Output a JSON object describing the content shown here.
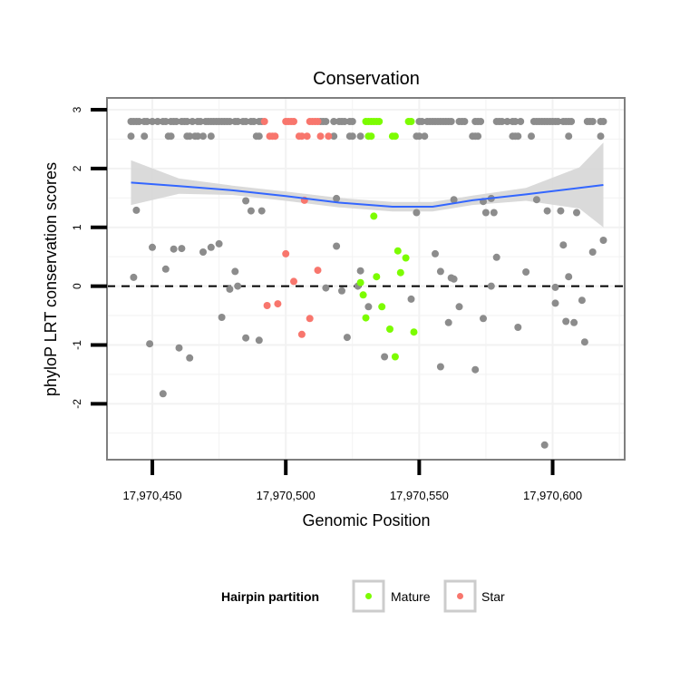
{
  "chart_data": {
    "type": "scatter",
    "title": "Conservation",
    "xlabel": "Genomic Position",
    "ylabel": "phyloP LRT conservation scores",
    "xlim": [
      17970433,
      17970627
    ],
    "ylim": [
      -2.95,
      3.2
    ],
    "x_ticks": [
      17970450,
      17970500,
      17970550,
      17970600
    ],
    "x_tick_labels": [
      "17,970,450",
      "17,970,500",
      "17,970,550",
      "17,970,600"
    ],
    "y_ticks": [
      -2,
      -1,
      0,
      1,
      2,
      3
    ],
    "y_tick_labels": [
      "-2",
      "-1",
      "0",
      "1",
      "2",
      "3"
    ],
    "grid": true,
    "reference_line": {
      "y": 0,
      "style": "dashed"
    },
    "legend": {
      "title": "Hairpin partition",
      "placement": "bottom",
      "entries": [
        {
          "label": "Mature",
          "color": "#7CFC00"
        },
        {
          "label": "Star",
          "color": "#F8766D"
        }
      ]
    },
    "colors": {
      "other": "#8c8c8c",
      "mature": "#7CFC00",
      "star": "#F8766D",
      "smooth": "#3366FF",
      "band": "#d6d6d6"
    },
    "smooth": {
      "x": [
        17970442,
        17970460,
        17970480,
        17970500,
        17970520,
        17970540,
        17970555,
        17970570,
        17970590,
        17970610,
        17970619
      ],
      "y": [
        1.76,
        1.7,
        1.63,
        1.53,
        1.42,
        1.35,
        1.35,
        1.46,
        1.56,
        1.67,
        1.72
      ],
      "band_low": [
        1.38,
        1.57,
        1.55,
        1.45,
        1.34,
        1.27,
        1.27,
        1.38,
        1.45,
        1.32,
        1.0
      ],
      "band_high": [
        2.14,
        1.83,
        1.71,
        1.61,
        1.5,
        1.43,
        1.43,
        1.54,
        1.67,
        2.02,
        2.44
      ]
    },
    "series": [
      {
        "name": "Other",
        "x": [
          17970442,
          17970443,
          17970444,
          17970445,
          17970447,
          17970448,
          17970450,
          17970452,
          17970454,
          17970455,
          17970457,
          17970458,
          17970459,
          17970461,
          17970462,
          17970463,
          17970465,
          17970467,
          17970468,
          17970470,
          17970471,
          17970472,
          17970473,
          17970474,
          17970475,
          17970476,
          17970477,
          17970478,
          17970479,
          17970481,
          17970482,
          17970484,
          17970485,
          17970487,
          17970488,
          17970490,
          17970491,
          17970513,
          17970514,
          17970515,
          17970518,
          17970520,
          17970521,
          17970522,
          17970524,
          17970525,
          17970550,
          17970551,
          17970553,
          17970554,
          17970555,
          17970556,
          17970557,
          17970558,
          17970559,
          17970560,
          17970561,
          17970562,
          17970565,
          17970566,
          17970567,
          17970571,
          17970572,
          17970573,
          17970579,
          17970580,
          17970581,
          17970583,
          17970585,
          17970586,
          17970588,
          17970593,
          17970594,
          17970595,
          17970596,
          17970597,
          17970598,
          17970599,
          17970600,
          17970601,
          17970602,
          17970604,
          17970605,
          17970606,
          17970607,
          17970613,
          17970614,
          17970615,
          17970618,
          17970619,
          17970442,
          17970447,
          17970456,
          17970457,
          17970463,
          17970464,
          17970466,
          17970467,
          17970469,
          17970472,
          17970489,
          17970490,
          17970518,
          17970524,
          17970525,
          17970528,
          17970549,
          17970550,
          17970552,
          17970570,
          17970571,
          17970572,
          17970585,
          17970586,
          17970587,
          17970592,
          17970606,
          17970618,
          17970444,
          17970485,
          17970487,
          17970491,
          17970519,
          17970549,
          17970563,
          17970574,
          17970575,
          17970578,
          17970577,
          17970594,
          17970598,
          17970603,
          17970609,
          17970450,
          17970458,
          17970461,
          17970469,
          17970472,
          17970475,
          17970519,
          17970556,
          17970443,
          17970455,
          17970481,
          17970482,
          17970528,
          17970558,
          17970562,
          17970563,
          17970577,
          17970579,
          17970590,
          17970606,
          17970615,
          17970619,
          17970479,
          17970515,
          17970521,
          17970527,
          17970531,
          17970547,
          17970574,
          17970611,
          17970601,
          17970565,
          17970601,
          17970605,
          17970561,
          17970449,
          17970476,
          17970485,
          17970490,
          17970523,
          17970587,
          17970608,
          17970612,
          17970460,
          17970464,
          17970537,
          17970454,
          17970558,
          17970571,
          17970597,
          17970604
        ],
        "y": [
          2.8,
          2.8,
          2.8,
          2.8,
          2.8,
          2.8,
          2.8,
          2.8,
          2.8,
          2.8,
          2.8,
          2.8,
          2.8,
          2.8,
          2.8,
          2.8,
          2.8,
          2.8,
          2.8,
          2.8,
          2.8,
          2.8,
          2.8,
          2.8,
          2.8,
          2.8,
          2.8,
          2.8,
          2.8,
          2.8,
          2.8,
          2.8,
          2.8,
          2.8,
          2.8,
          2.8,
          2.8,
          2.8,
          2.8,
          2.8,
          2.8,
          2.8,
          2.8,
          2.8,
          2.8,
          2.8,
          2.8,
          2.8,
          2.8,
          2.8,
          2.8,
          2.8,
          2.8,
          2.8,
          2.8,
          2.8,
          2.8,
          2.8,
          2.8,
          2.8,
          2.8,
          2.8,
          2.8,
          2.8,
          2.8,
          2.8,
          2.8,
          2.8,
          2.8,
          2.8,
          2.8,
          2.8,
          2.8,
          2.8,
          2.8,
          2.8,
          2.8,
          2.8,
          2.8,
          2.8,
          2.8,
          2.8,
          2.8,
          2.8,
          2.8,
          2.8,
          2.8,
          2.8,
          2.8,
          2.8,
          2.55,
          2.55,
          2.55,
          2.55,
          2.55,
          2.55,
          2.55,
          2.55,
          2.55,
          2.55,
          2.55,
          2.55,
          2.55,
          2.55,
          2.55,
          2.55,
          2.55,
          2.55,
          2.55,
          2.55,
          2.55,
          2.55,
          2.55,
          2.55,
          2.55,
          2.55,
          2.55,
          2.55,
          1.29,
          1.45,
          1.28,
          1.28,
          1.49,
          1.25,
          1.47,
          1.44,
          1.25,
          1.25,
          1.49,
          1.47,
          1.28,
          1.28,
          1.25,
          0.66,
          0.63,
          0.64,
          0.58,
          0.66,
          0.72,
          0.68,
          0.55,
          0.15,
          0.29,
          0.25,
          0.0,
          0.26,
          0.25,
          0.14,
          0.12,
          0.0,
          0.49,
          0.24,
          0.16,
          0.58,
          0.78,
          -0.05,
          -0.03,
          -0.08,
          0.0,
          -0.35,
          -0.22,
          -0.55,
          -0.24,
          -0.02,
          -0.35,
          -0.29,
          -0.6,
          -0.62,
          -0.98,
          -0.53,
          -0.88,
          -0.92,
          -0.87,
          -0.7,
          -0.62,
          -0.95,
          -1.05,
          -1.22,
          -1.2,
          -1.83,
          -1.37,
          -1.42,
          -2.7,
          0.7
        ],
        "color": "#8c8c8c"
      },
      {
        "name": "Mature",
        "x": [
          17970530,
          17970531,
          17970532,
          17970533,
          17970534,
          17970535,
          17970546,
          17970547,
          17970531,
          17970532,
          17970540,
          17970541,
          17970533,
          17970542,
          17970543,
          17970545,
          17970534,
          17970528,
          17970529,
          17970536,
          17970530,
          17970539,
          17970548,
          17970541
        ],
        "y": [
          2.8,
          2.8,
          2.8,
          2.8,
          2.8,
          2.8,
          2.8,
          2.8,
          2.55,
          2.55,
          2.55,
          2.55,
          1.19,
          0.6,
          0.23,
          0.48,
          0.16,
          0.06,
          -0.15,
          -0.35,
          -0.54,
          -0.73,
          -0.78,
          -1.2
        ],
        "color": "#7CFC00"
      },
      {
        "name": "Star",
        "x": [
          17970492,
          17970500,
          17970501,
          17970502,
          17970503,
          17970509,
          17970510,
          17970511,
          17970512,
          17970494,
          17970495,
          17970496,
          17970505,
          17970506,
          17970508,
          17970513,
          17970516,
          17970507,
          17970500,
          17970512,
          17970503,
          17970493,
          17970497,
          17970509,
          17970506
        ],
        "y": [
          2.8,
          2.8,
          2.8,
          2.8,
          2.8,
          2.8,
          2.8,
          2.8,
          2.8,
          2.55,
          2.55,
          2.55,
          2.55,
          2.55,
          2.55,
          2.55,
          2.55,
          1.46,
          0.55,
          0.27,
          0.08,
          -0.33,
          -0.3,
          -0.55,
          -0.82
        ],
        "color": "#F8766D"
      }
    ]
  }
}
